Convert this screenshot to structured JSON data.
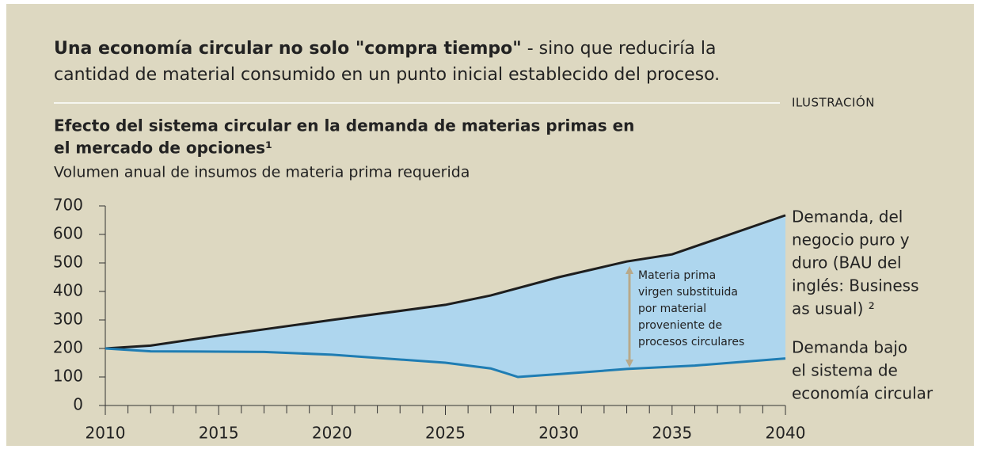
{
  "chart_data": {
    "type": "line",
    "headline_bold": "Una economía circular no solo \"compra tiempo\"",
    "headline_line1": " - sino que reduciría la",
    "headline_line2": "cantidad de material consumido en un punto inicial establecido del proceso.",
    "tag": "ILUSTRACIÓN",
    "title_lines": [
      "Efecto del sistema circular en la demanda  de materias primas en",
      "el mercado de opciones¹"
    ],
    "subtitle": "Volumen anual de insumos de materia prima requerida",
    "annotation_lines": [
      "Materia prima",
      "virgen substituida",
      "por material",
      "proveniente de",
      "procesos circulares"
    ],
    "xlim": [
      2010,
      2040
    ],
    "xticks": [
      2010,
      2015,
      2020,
      2025,
      2030,
      2035,
      2040
    ],
    "xminorticks": [
      2011,
      2012,
      2013,
      2014,
      2016,
      2017,
      2018,
      2019,
      2021,
      2022,
      2023,
      2024,
      2026,
      2027,
      2028,
      2029,
      2031,
      2032,
      2033,
      2034,
      2036,
      2037,
      2038,
      2039
    ],
    "ylim": [
      0,
      700
    ],
    "yticks": [
      0,
      100,
      200,
      300,
      400,
      500,
      600,
      700
    ],
    "fill_color": "#aed6ee",
    "series": [
      {
        "label_lines": [
          "Demanda, del",
          "negocio puro y",
          "duro (BAU del",
          "inglés: Business",
          "as usual) ²"
        ],
        "color": "#1e1e1e",
        "x": [
          2010,
          2012,
          2015,
          2020,
          2025,
          2027,
          2030,
          2033,
          2035,
          2040
        ],
        "values": [
          200,
          210,
          245,
          300,
          353,
          386,
          450,
          505,
          530,
          667
        ]
      },
      {
        "label_lines": [
          "Demanda bajo",
          "el sistema de",
          "economía circular"
        ],
        "color": "#1f7db3",
        "x": [
          2010,
          2012,
          2017,
          2020,
          2025,
          2027,
          2028.2,
          2030,
          2033,
          2036,
          2040
        ],
        "values": [
          200,
          190,
          188,
          178,
          150,
          130,
          100,
          110,
          128,
          140,
          165
        ]
      }
    ]
  }
}
